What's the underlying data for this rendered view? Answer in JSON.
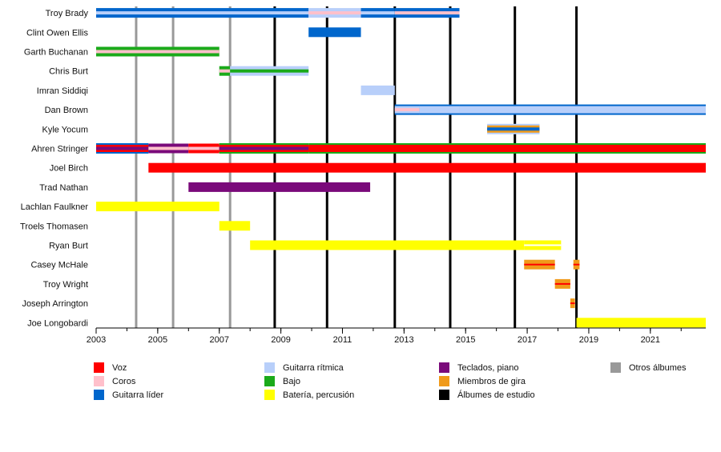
{
  "chart_data": {
    "type": "timeline",
    "xlim": [
      2003,
      2022.8
    ],
    "x_ticks": [
      2003,
      2005,
      2007,
      2009,
      2011,
      2013,
      2015,
      2017,
      2019,
      2021
    ],
    "colors": {
      "voz": "#ff0000",
      "coros": "#ffc0cb",
      "guitarra_lider": "#0066cc",
      "guitarra_ritmica": "#b8cffa",
      "bajo": "#1aaa1a",
      "teclados": "#7a0a7a",
      "gira": "#f09a1a",
      "estudio": "#000000",
      "otros": "#999999",
      "bateria": "#ffff00"
    },
    "studio_albums": [
      2008.8,
      2010.5,
      2012.7,
      2014.5,
      2016.6,
      2018.6
    ],
    "other_albums": [
      2004.3,
      2005.5,
      2007.35
    ],
    "members": [
      {
        "name": "Troy Brady",
        "segments": [
          {
            "start": 2003,
            "end": 2009.9,
            "role": "guitarra_lider",
            "stripe": "guitarra_ritmica"
          },
          {
            "start": 2009.9,
            "end": 2011.6,
            "role": "guitarra_ritmica",
            "stripe": "coros"
          },
          {
            "start": 2011.6,
            "end": 2012.7,
            "role": "guitarra_lider",
            "stripe": "guitarra_ritmica"
          },
          {
            "start": 2012.7,
            "end": 2014.8,
            "role": "guitarra_lider",
            "stripe": "coros"
          }
        ]
      },
      {
        "name": "Clint Owen Ellis",
        "segments": [
          {
            "start": 2009.9,
            "end": 2011.6,
            "role": "guitarra_lider"
          }
        ]
      },
      {
        "name": "Garth Buchanan",
        "segments": [
          {
            "start": 2003,
            "end": 2007,
            "role": "bajo",
            "stripe": "coros"
          }
        ]
      },
      {
        "name": "Chris Burt",
        "segments": [
          {
            "start": 2007,
            "end": 2007.35,
            "role": "bajo",
            "stripe": "coros"
          },
          {
            "start": 2007.35,
            "end": 2009.9,
            "role": "guitarra_ritmica",
            "stripe": "bajo"
          }
        ]
      },
      {
        "name": "Imran Siddiqi",
        "segments": [
          {
            "start": 2011.6,
            "end": 2012.7,
            "role": "guitarra_ritmica"
          }
        ]
      },
      {
        "name": "Dan Brown",
        "segments": [
          {
            "start": 2012.7,
            "end": 2013.5,
            "role": "guitarra_ritmica",
            "stripe": "coros",
            "edge": "guitarra_lider"
          },
          {
            "start": 2013.5,
            "end": 2014.8,
            "role": "guitarra_ritmica",
            "edge": "guitarra_lider"
          },
          {
            "start": 2014.8,
            "end": 2022.8,
            "role": "guitarra_ritmica",
            "edge": "guitarra_lider"
          }
        ]
      },
      {
        "name": "Kyle Yocum",
        "segments": [
          {
            "start": 2015.7,
            "end": 2017.4,
            "role": "gira",
            "stripe": "guitarra_lider",
            "edge": "guitarra_ritmica"
          }
        ]
      },
      {
        "name": "Ahren Stringer",
        "segments": [
          {
            "start": 2003,
            "end": 2004.7,
            "role": "voz",
            "stripe": "teclados",
            "edge": "guitarra_lider"
          },
          {
            "start": 2004.7,
            "end": 2006,
            "role": "teclados",
            "stripe": "coros"
          },
          {
            "start": 2006,
            "end": 2007,
            "role": "voz",
            "stripe": "coros"
          },
          {
            "start": 2007,
            "end": 2009.9,
            "role": "voz",
            "stripe": "teclados",
            "edge": "bajo"
          },
          {
            "start": 2009.9,
            "end": 2022.8,
            "role": "voz",
            "stripe": "voz",
            "edge": "bajo"
          }
        ]
      },
      {
        "name": "Joel Birch",
        "segments": [
          {
            "start": 2004.7,
            "end": 2022.8,
            "role": "voz"
          }
        ]
      },
      {
        "name": "Trad Nathan",
        "segments": [
          {
            "start": 2006,
            "end": 2011.9,
            "role": "teclados"
          }
        ]
      },
      {
        "name": "Lachlan Faulkner",
        "segments": [
          {
            "start": 2003,
            "end": 2007,
            "role": "bateria"
          }
        ]
      },
      {
        "name": "Troels Thomasen",
        "segments": [
          {
            "start": 2007,
            "end": 2008,
            "role": "bateria"
          }
        ]
      },
      {
        "name": "Ryan Burt",
        "segments": [
          {
            "start": 2008,
            "end": 2016.9,
            "role": "bateria"
          },
          {
            "start": 2016.9,
            "end": 2018.1,
            "role": "bateria",
            "stripe": "bateria_white"
          }
        ]
      },
      {
        "name": "Casey McHale",
        "segments": [
          {
            "start": 2016.9,
            "end": 2017.9,
            "role": "gira",
            "stripe": "voz_thin"
          },
          {
            "start": 2018.5,
            "end": 2018.7,
            "role": "gira",
            "stripe": "voz_thin"
          }
        ]
      },
      {
        "name": "Troy Wright",
        "segments": [
          {
            "start": 2017.9,
            "end": 2018.4,
            "role": "gira",
            "stripe": "voz_thin"
          }
        ]
      },
      {
        "name": "Joseph Arrington",
        "segments": [
          {
            "start": 2018.4,
            "end": 2018.55,
            "role": "gira",
            "stripe": "voz_thin"
          }
        ]
      },
      {
        "name": "Joe Longobardi",
        "segments": [
          {
            "start": 2018.6,
            "end": 2022.8,
            "role": "bateria"
          }
        ]
      }
    ],
    "legend": [
      {
        "key": "voz",
        "label": "Voz",
        "col": 0,
        "row": 0
      },
      {
        "key": "coros",
        "label": "Coros",
        "col": 0,
        "row": 1
      },
      {
        "key": "guitarra_lider",
        "label": "Guitarra líder",
        "col": 0,
        "row": 2
      },
      {
        "key": "guitarra_ritmica",
        "label": "Guitarra rítmica",
        "col": 1,
        "row": 0
      },
      {
        "key": "bajo",
        "label": "Bajo",
        "col": 1,
        "row": 1
      },
      {
        "key": "bateria",
        "label": "Batería, percusión",
        "col": 1,
        "row": 2
      },
      {
        "key": "teclados",
        "label": "Teclados, piano",
        "col": 2,
        "row": 0
      },
      {
        "key": "gira",
        "label": "Miembros de gira",
        "col": 2,
        "row": 1
      },
      {
        "key": "estudio",
        "label": "Álbumes de estudio",
        "col": 2,
        "row": 2
      },
      {
        "key": "otros",
        "label": "Otros álbumes",
        "col": 3,
        "row": 0
      }
    ]
  }
}
